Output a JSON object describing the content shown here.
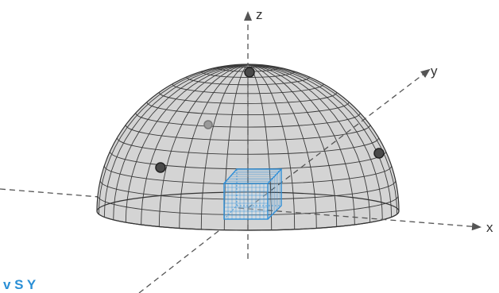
{
  "axes": {
    "x_label": "x",
    "y_label": "y",
    "z_label": "z",
    "line_color": "#555555",
    "style": "dashed-with-arrowheads"
  },
  "surface": {
    "shape": "hemisphere",
    "fill_color": "#d4d4d4",
    "mesh_color": "#3a3a3a"
  },
  "cube": {
    "color": "#2f8fd8",
    "style": "wireframe"
  },
  "points": {
    "count": 4,
    "color": "#555555"
  },
  "caption": {
    "text": "v S  Y",
    "color": "#2a8fd6"
  }
}
